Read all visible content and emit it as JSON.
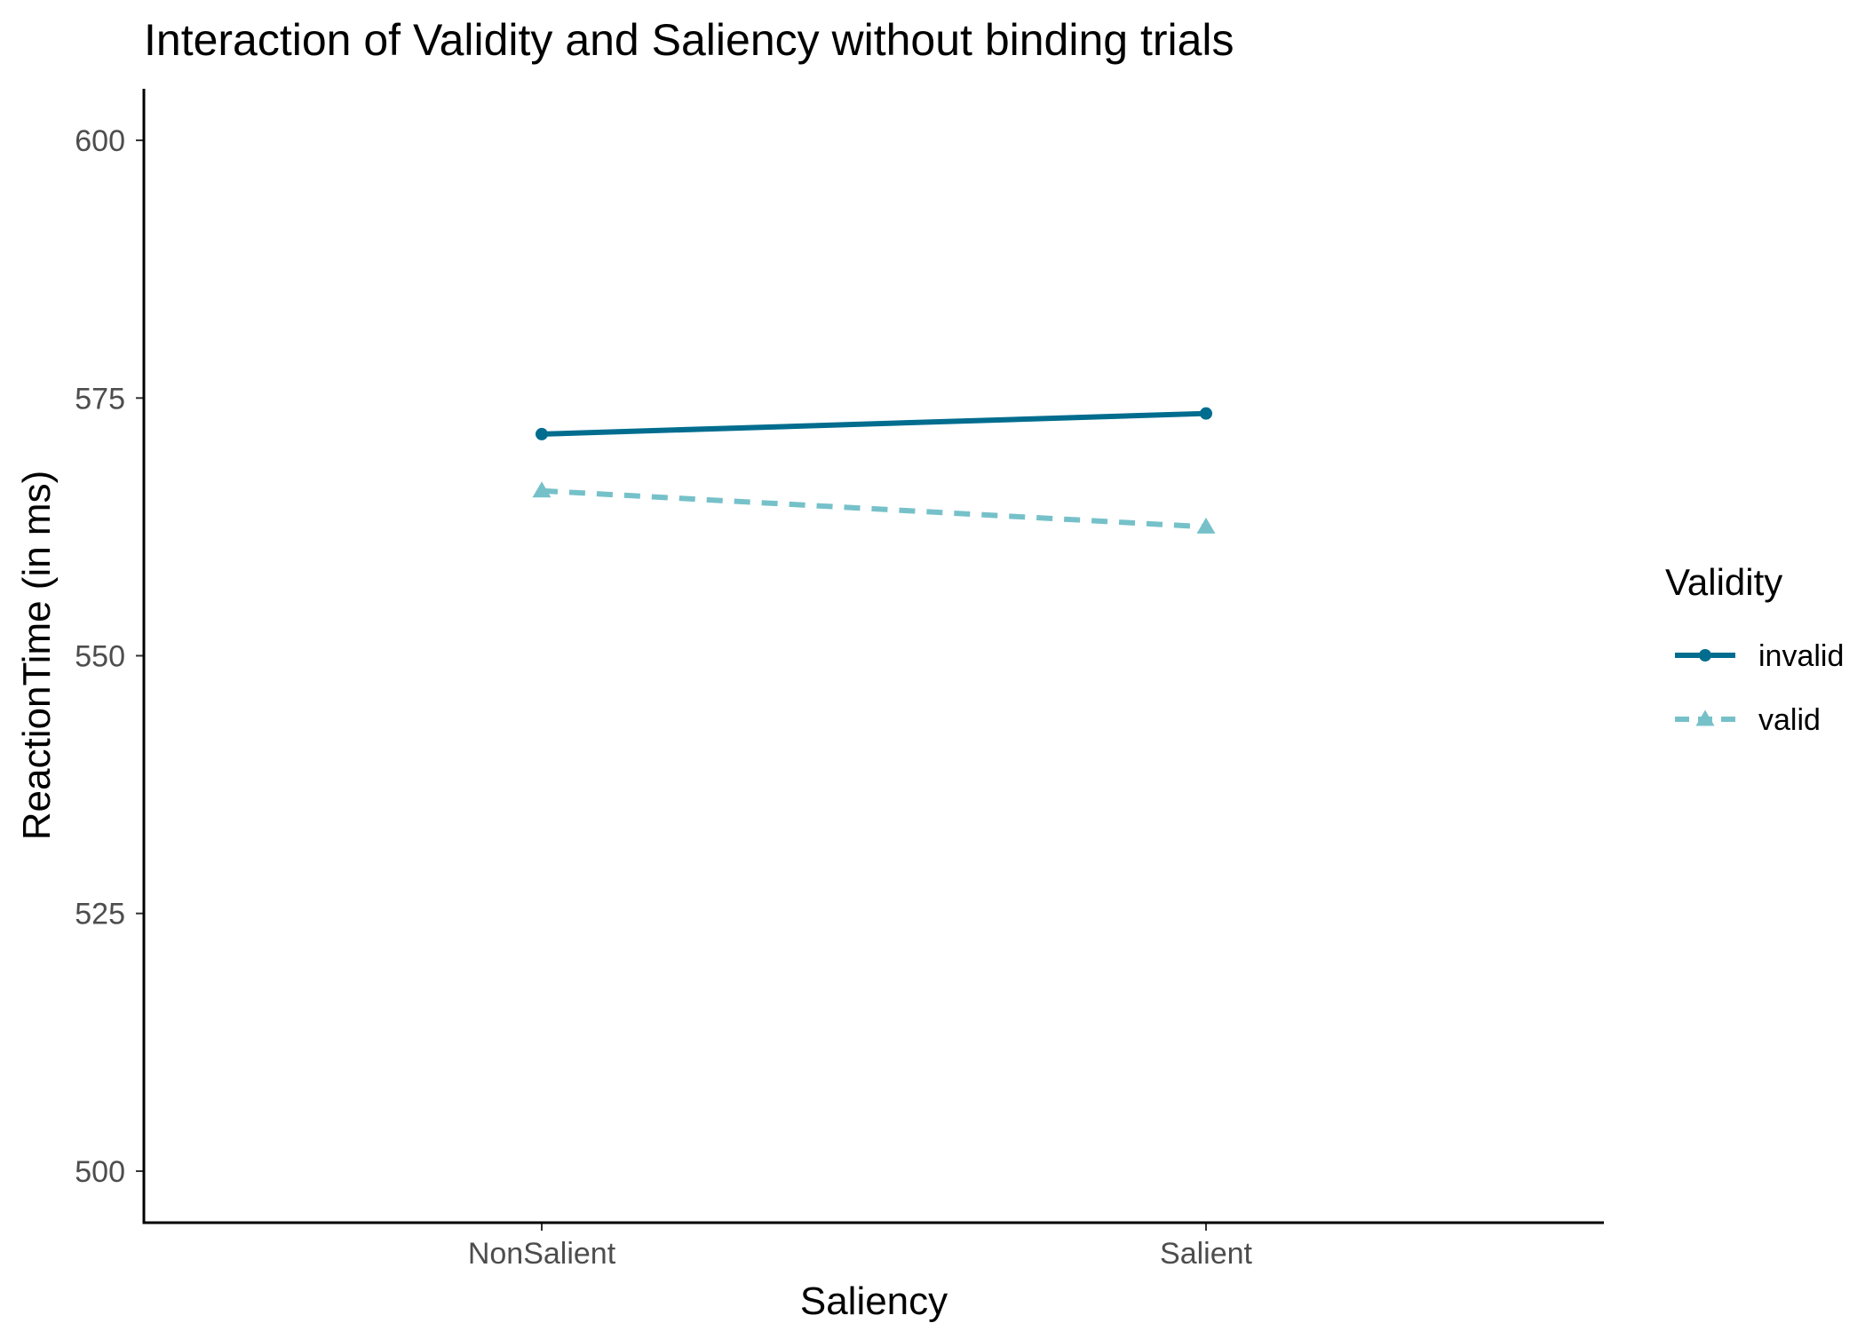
{
  "chart_data": {
    "type": "line",
    "title": "Interaction of Validity and Saliency without binding trials",
    "xlabel": "Saliency",
    "ylabel": "ReactionTime (in ms)",
    "categories": [
      "NonSalient",
      "Salient"
    ],
    "ylim": [
      495,
      605
    ],
    "yticks": [
      500,
      525,
      550,
      575,
      600
    ],
    "grid": false,
    "legend": {
      "title": "Validity",
      "placement": "right"
    },
    "series": [
      {
        "name": "invalid",
        "values": [
          571.5,
          573.5
        ],
        "color": "#006d8f",
        "line_style": "solid",
        "marker": "circle"
      },
      {
        "name": "valid",
        "values": [
          566.0,
          562.5
        ],
        "color": "#76c1c9",
        "line_style": "dashed",
        "marker": "triangle"
      }
    ]
  }
}
